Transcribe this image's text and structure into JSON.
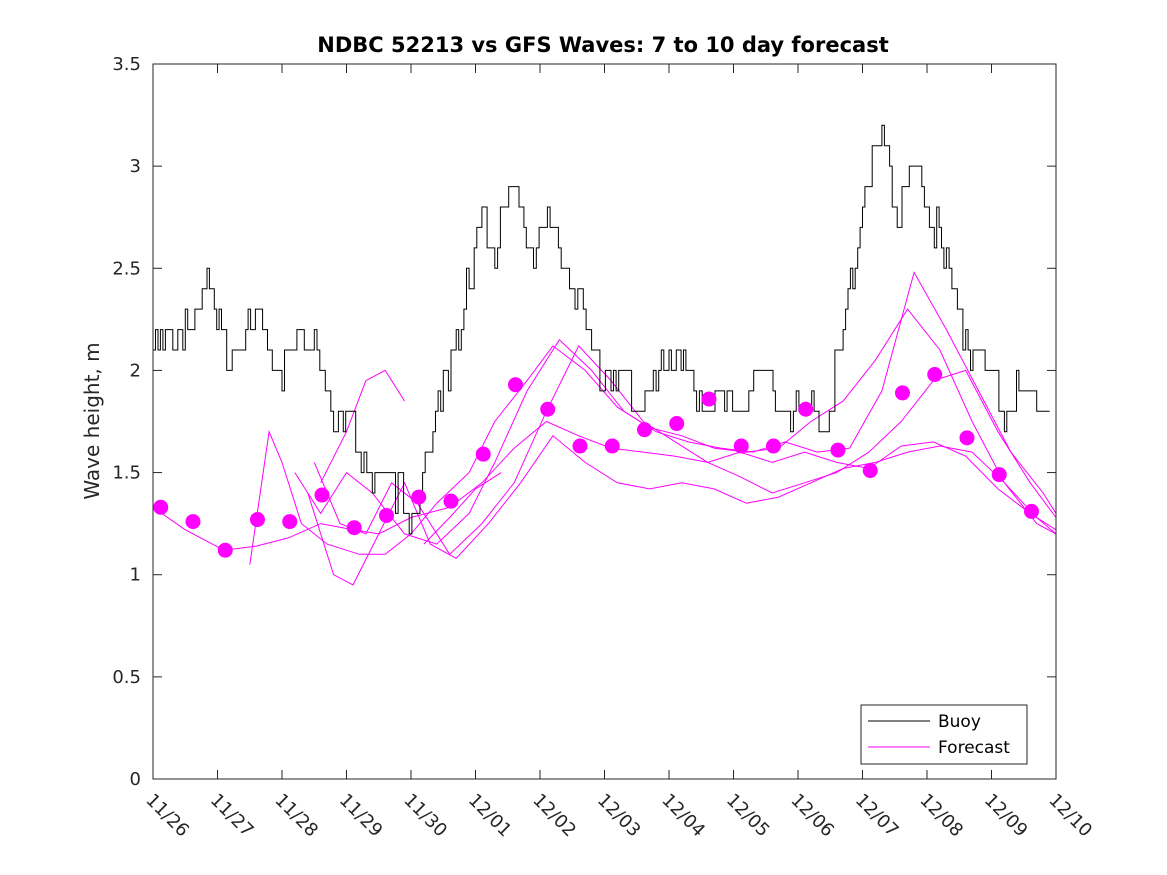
{
  "chart_data": {
    "type": "line",
    "title": "NDBC 52213 vs GFS Waves: 7 to 10 day forecast",
    "xlabel": "",
    "ylabel": "Wave height, m",
    "xlim": [
      0,
      14
    ],
    "ylim": [
      0,
      3.5
    ],
    "yticks": [
      0,
      0.5,
      1,
      1.5,
      2,
      2.5,
      3,
      3.5
    ],
    "ytick_labels": [
      "0",
      "0.5",
      "1",
      "1.5",
      "2",
      "2.5",
      "3",
      "3.5"
    ],
    "xtick_labels": [
      "11/26",
      "11/27",
      "11/28",
      "11/29",
      "11/30",
      "12/01",
      "12/02",
      "12/03",
      "12/04",
      "12/05",
      "12/06",
      "12/07",
      "12/08",
      "12/09",
      "12/10"
    ],
    "legend": {
      "position": "bottom-right",
      "entries": [
        {
          "label": "Buoy",
          "color": "#000000"
        },
        {
          "label": "Forecast",
          "color": "#ff00ff"
        }
      ]
    },
    "colors": {
      "buoy": "#000000",
      "forecast": "#ff00ff",
      "axis": "#262626"
    },
    "buoy": {
      "name": "Buoy",
      "x": [
        0,
        0.5,
        0.8,
        1.1,
        1.4,
        1.7,
        2,
        2.5,
        2.8,
        3.1,
        3.4,
        3.8,
        4.1,
        4.5,
        4.9,
        5.1,
        5.3,
        5.6,
        5.9,
        6.2,
        6.5,
        6.8,
        7.1,
        7.3,
        7.5,
        7.8,
        8.0,
        8.3,
        8.6,
        8.9,
        9.2,
        9.5,
        9.8,
        10.1,
        10.4,
        10.7,
        11.0,
        11.3,
        11.5,
        11.8,
        12.0,
        12.3,
        12.6,
        12.9,
        13.2,
        13.5,
        13.9
      ],
      "values": [
        2.05,
        2.2,
        2.45,
        2.1,
        2.15,
        2.2,
        2.0,
        2.2,
        1.75,
        1.7,
        1.45,
        1.4,
        1.3,
        1.9,
        2.45,
        2.7,
        2.6,
        2.85,
        2.6,
        2.7,
        2.4,
        2.1,
        2.0,
        1.95,
        1.85,
        1.9,
        2.1,
        1.95,
        1.85,
        1.8,
        1.85,
        1.95,
        1.85,
        1.8,
        1.75,
        2.2,
        2.85,
        3.1,
        2.8,
        2.95,
        2.85,
        2.5,
        2.2,
        2.0,
        1.85,
        1.9,
        1.8
      ]
    },
    "forecast_series": [
      {
        "name": "Forecast",
        "x": [
          0,
          0.5,
          1.1,
          1.6,
          2.1,
          2.6,
          3.1,
          3.5,
          4.0,
          4.6,
          5.1,
          5.6,
          6.1,
          6.6,
          7.1,
          7.6,
          8.1,
          8.6,
          9.1,
          9.6,
          10.1,
          10.6,
          11.1,
          11.6,
          12.1,
          12.6,
          13.1,
          13.6,
          14.0
        ],
        "values": [
          1.33,
          1.22,
          1.12,
          1.14,
          1.18,
          1.25,
          1.22,
          1.2,
          1.28,
          1.33,
          1.45,
          1.62,
          1.75,
          1.68,
          1.62,
          1.6,
          1.58,
          1.55,
          1.6,
          1.55,
          1.6,
          1.55,
          1.52,
          1.63,
          1.65,
          1.58,
          1.42,
          1.3,
          1.22
        ]
      },
      {
        "name": "Forecast",
        "x": [
          1.5,
          1.8,
          2.0,
          2.3,
          2.7,
          3.2,
          3.6,
          4.0,
          4.4,
          4.9,
          5.3,
          5.8,
          6.2,
          6.7,
          7.2,
          7.7,
          8.2,
          8.7,
          9.2,
          9.7,
          10.2,
          10.7,
          11.2,
          11.7,
          12.2,
          12.7,
          13.2,
          13.7,
          14.0
        ],
        "values": [
          1.05,
          1.7,
          1.55,
          1.25,
          1.15,
          1.1,
          1.1,
          1.2,
          1.35,
          1.5,
          1.75,
          1.95,
          2.12,
          2.0,
          1.82,
          1.72,
          1.68,
          1.62,
          1.6,
          1.62,
          1.75,
          1.85,
          2.05,
          2.3,
          2.1,
          1.75,
          1.45,
          1.25,
          1.2
        ]
      },
      {
        "name": "Forecast",
        "x": [
          2.2,
          2.6,
          3.0,
          3.4,
          3.9,
          4.4,
          4.9,
          5.3,
          5.8,
          6.3,
          6.8,
          7.3,
          7.8,
          8.3,
          8.8,
          9.3,
          9.8,
          10.3,
          10.8,
          11.3,
          11.8,
          12.3,
          12.8,
          13.3,
          13.8,
          14.0
        ],
        "values": [
          1.5,
          1.3,
          1.5,
          1.4,
          1.2,
          1.15,
          1.3,
          1.55,
          1.9,
          2.15,
          2.0,
          1.8,
          1.7,
          1.65,
          1.62,
          1.6,
          1.65,
          1.6,
          1.62,
          1.9,
          2.48,
          2.2,
          1.9,
          1.6,
          1.4,
          1.3
        ]
      },
      {
        "name": "Forecast",
        "x": [
          2.5,
          2.9,
          3.3,
          3.7,
          4.1,
          4.6,
          5.1,
          5.6,
          6.1,
          6.6,
          7.1,
          7.6,
          8.1,
          8.6,
          9.1,
          9.6,
          10.1,
          10.6,
          11.1,
          11.6,
          12.1,
          12.6,
          13.1,
          13.6,
          14.0
        ],
        "values": [
          1.55,
          1.25,
          1.2,
          1.45,
          1.35,
          1.1,
          1.25,
          1.45,
          1.8,
          2.12,
          1.95,
          1.75,
          1.65,
          1.55,
          1.48,
          1.4,
          1.45,
          1.5,
          1.6,
          1.75,
          1.95,
          2.0,
          1.7,
          1.45,
          1.28
        ]
      },
      {
        "name": "Forecast",
        "x": [
          2.4,
          2.8,
          3.1,
          3.5,
          3.9,
          4.3,
          4.7,
          5.2,
          5.7,
          6.2,
          6.7,
          7.2,
          7.7,
          8.2,
          8.7,
          9.2,
          9.7,
          10.2,
          10.7,
          11.2,
          11.7,
          12.2,
          12.7,
          13.2,
          13.7,
          14.0
        ],
        "values": [
          1.4,
          1.0,
          0.95,
          1.2,
          1.45,
          1.15,
          1.08,
          1.25,
          1.45,
          1.68,
          1.55,
          1.45,
          1.42,
          1.45,
          1.42,
          1.35,
          1.38,
          1.45,
          1.52,
          1.55,
          1.6,
          1.63,
          1.6,
          1.45,
          1.28,
          1.2
        ]
      },
      {
        "name": "Forecast",
        "x": [
          2.6,
          3.0,
          3.3,
          3.6,
          3.9
        ],
        "values": [
          1.45,
          1.7,
          1.95,
          2.0,
          1.85
        ]
      },
      {
        "name": "Forecast",
        "x": [
          4.2,
          4.6,
          5.0,
          5.4
        ],
        "values": [
          1.15,
          1.28,
          1.42,
          1.5
        ]
      }
    ],
    "forecast_markers": {
      "name": "Forecast",
      "x": [
        0.12,
        0.62,
        1.12,
        1.62,
        2.12,
        2.62,
        3.12,
        3.62,
        4.12,
        4.62,
        5.12,
        5.62,
        6.12,
        6.62,
        7.12,
        7.62,
        8.12,
        8.62,
        9.12,
        9.62,
        10.12,
        10.62,
        11.12,
        11.62,
        12.12,
        12.62,
        13.12,
        13.62
      ],
      "values": [
        1.33,
        1.26,
        1.12,
        1.27,
        1.26,
        1.39,
        1.23,
        1.29,
        1.38,
        1.36,
        1.59,
        1.93,
        1.81,
        1.63,
        1.63,
        1.71,
        1.74,
        1.86,
        1.63,
        1.63,
        1.81,
        1.61,
        1.51,
        1.89,
        1.98,
        1.67,
        1.49,
        1.31
      ]
    }
  }
}
